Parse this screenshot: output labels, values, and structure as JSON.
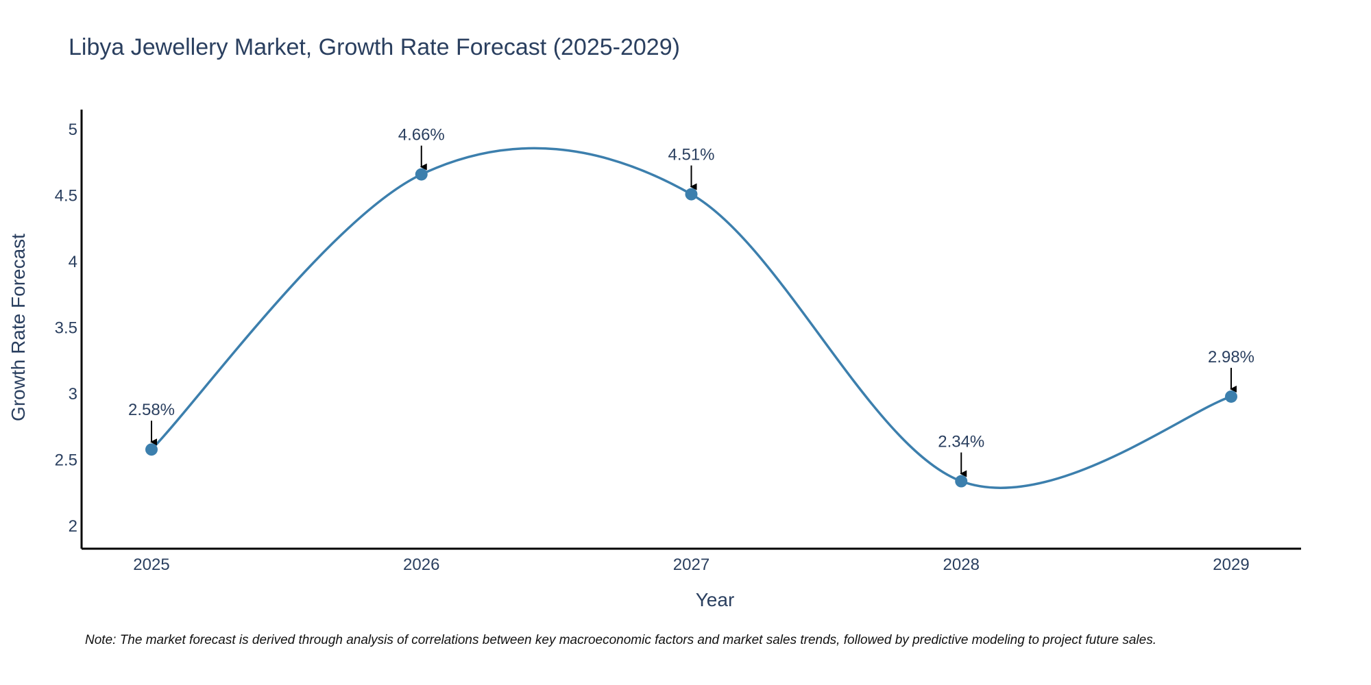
{
  "chart_data": {
    "type": "line",
    "title": "Libya Jewellery Market, Growth Rate Forecast (2025-2029)",
    "xlabel": "Year",
    "ylabel": "Growth Rate Forecast",
    "categories": [
      "2025",
      "2026",
      "2027",
      "2028",
      "2029"
    ],
    "series": [
      {
        "name": "Growth Rate Forecast",
        "values": [
          2.58,
          4.66,
          4.51,
          2.34,
          2.98
        ],
        "labels": [
          "2.58%",
          "4.66%",
          "4.51%",
          "2.34%",
          "2.98%"
        ]
      }
    ],
    "yticks": [
      2,
      2.5,
      3,
      3.5,
      4,
      4.5,
      5
    ],
    "ytick_labels": [
      "2",
      "2.5",
      "3",
      "3.5",
      "4",
      "4.5",
      "5"
    ],
    "ylim": [
      1.83,
      5.15
    ],
    "grid": false,
    "line_shape": "spline",
    "note": "Note: The market forecast is derived through analysis of correlations between key macroeconomic factors and market sales trends, followed by predictive modeling to project future sales."
  },
  "colors": {
    "line": "#3c7fad",
    "marker": "#3c7fad",
    "axis": "#000000",
    "text": "#2a3f5f",
    "arrow": "#000000"
  }
}
